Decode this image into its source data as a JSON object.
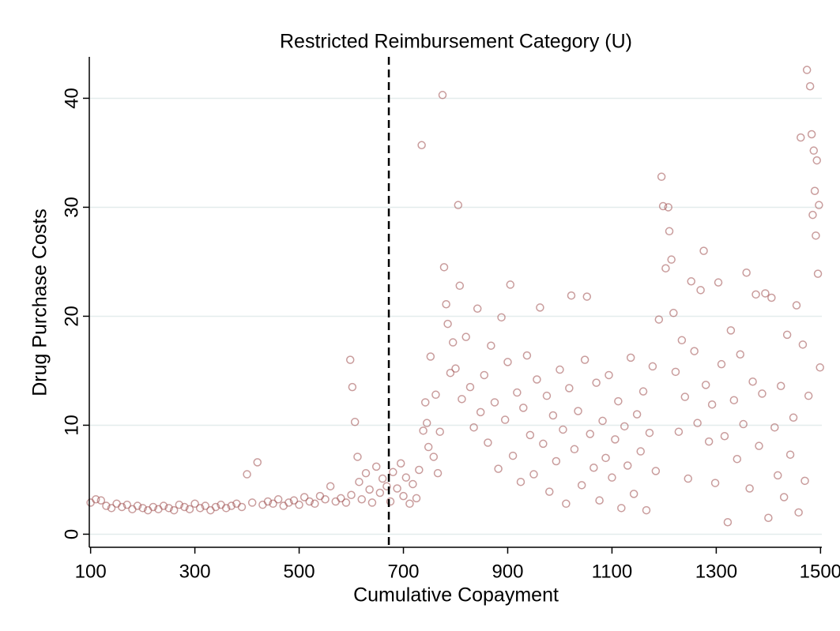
{
  "chart_data": {
    "type": "scatter",
    "title": "Restricted Reimbursement Category (U)",
    "x_label": "Cumulative Copayment",
    "y_label": "Drug Purchase Costs",
    "color": "#9c4a4a",
    "grid": true,
    "cutoff": 672,
    "xlim": [
      97.5,
      1502.5
    ],
    "ylim": [
      -1.2,
      43.8
    ],
    "xticks": [
      100,
      300,
      500,
      700,
      900,
      1100,
      1300,
      1500
    ],
    "yticks": [
      0,
      10,
      20,
      30,
      40
    ],
    "x": [
      100,
      110,
      120,
      130,
      140,
      150,
      160,
      170,
      180,
      190,
      200,
      210,
      220,
      230,
      240,
      250,
      260,
      270,
      280,
      290,
      300,
      310,
      320,
      330,
      340,
      350,
      360,
      370,
      380,
      390,
      400,
      410,
      420,
      430,
      440,
      450,
      460,
      470,
      480,
      490,
      500,
      510,
      520,
      530,
      540,
      550,
      560,
      570,
      580,
      590,
      600,
      598,
      602,
      607,
      612,
      615,
      620,
      628,
      635,
      640,
      648,
      655,
      660,
      668,
      675,
      680,
      688,
      695,
      700,
      705,
      712,
      718,
      725,
      730,
      735,
      738,
      742,
      745,
      748,
      752,
      758,
      762,
      766,
      770,
      775,
      778,
      782,
      785,
      790,
      795,
      800,
      805,
      808,
      812,
      820,
      828,
      835,
      842,
      848,
      855,
      862,
      868,
      875,
      882,
      888,
      895,
      900,
      905,
      910,
      918,
      925,
      930,
      937,
      943,
      950,
      956,
      962,
      968,
      975,
      980,
      987,
      993,
      1000,
      1006,
      1012,
      1018,
      1022,
      1028,
      1035,
      1042,
      1048,
      1052,
      1058,
      1065,
      1070,
      1076,
      1082,
      1088,
      1094,
      1100,
      1106,
      1112,
      1118,
      1124,
      1130,
      1136,
      1142,
      1148,
      1155,
      1160,
      1166,
      1172,
      1178,
      1184,
      1190,
      1195,
      1198,
      1203,
      1208,
      1210,
      1214,
      1218,
      1222,
      1228,
      1234,
      1240,
      1246,
      1252,
      1258,
      1264,
      1270,
      1276,
      1280,
      1286,
      1292,
      1298,
      1304,
      1310,
      1316,
      1322,
      1328,
      1334,
      1340,
      1346,
      1352,
      1358,
      1364,
      1370,
      1376,
      1382,
      1388,
      1394,
      1400,
      1406,
      1412,
      1418,
      1424,
      1430,
      1436,
      1442,
      1448,
      1454,
      1458,
      1462,
      1466,
      1470,
      1474,
      1477,
      1480,
      1483,
      1485,
      1487,
      1489,
      1491,
      1493,
      1495,
      1497,
      1499
    ],
    "values": [
      2.9,
      3.2,
      3.1,
      2.6,
      2.4,
      2.8,
      2.5,
      2.7,
      2.3,
      2.6,
      2.4,
      2.2,
      2.5,
      2.3,
      2.6,
      2.4,
      2.2,
      2.7,
      2.5,
      2.3,
      2.8,
      2.4,
      2.6,
      2.2,
      2.5,
      2.7,
      2.4,
      2.6,
      2.8,
      2.5,
      5.5,
      2.9,
      6.6,
      2.7,
      3.0,
      2.8,
      3.2,
      2.6,
      2.9,
      3.1,
      2.7,
      3.4,
      3.0,
      2.8,
      3.5,
      3.2,
      4.4,
      3.0,
      3.3,
      2.9,
      3.6,
      16.0,
      13.5,
      10.3,
      7.1,
      4.8,
      3.2,
      5.6,
      4.1,
      2.9,
      6.2,
      3.8,
      5.1,
      4.4,
      3.0,
      5.7,
      4.2,
      6.5,
      3.5,
      5.2,
      2.8,
      4.6,
      3.3,
      5.9,
      35.7,
      9.5,
      12.1,
      10.2,
      8.0,
      16.3,
      7.1,
      12.8,
      5.6,
      9.4,
      40.3,
      24.5,
      21.1,
      19.3,
      14.8,
      17.6,
      15.2,
      30.2,
      22.8,
      12.4,
      18.1,
      13.5,
      9.8,
      20.7,
      11.2,
      14.6,
      8.4,
      17.3,
      12.1,
      6.0,
      19.9,
      10.5,
      15.8,
      22.9,
      7.2,
      13.0,
      4.8,
      11.6,
      16.4,
      9.1,
      5.5,
      14.2,
      20.8,
      8.3,
      12.7,
      3.9,
      10.9,
      6.7,
      15.1,
      9.6,
      2.8,
      13.4,
      21.9,
      7.8,
      11.3,
      4.5,
      16.0,
      21.8,
      9.2,
      6.1,
      13.9,
      3.1,
      10.4,
      7.0,
      14.6,
      5.2,
      8.7,
      12.2,
      2.4,
      9.9,
      6.3,
      16.2,
      3.7,
      11.0,
      7.6,
      13.1,
      2.2,
      9.3,
      15.4,
      5.8,
      19.7,
      32.8,
      30.1,
      24.4,
      30.0,
      27.8,
      25.2,
      20.3,
      14.9,
      9.4,
      17.8,
      12.6,
      5.1,
      23.2,
      16.8,
      10.2,
      22.4,
      26.0,
      13.7,
      8.5,
      11.9,
      4.7,
      23.1,
      15.6,
      9.0,
      1.1,
      18.7,
      12.3,
      6.9,
      16.5,
      10.1,
      24.0,
      4.2,
      14.0,
      22.0,
      8.1,
      12.9,
      22.1,
      1.5,
      21.7,
      9.8,
      5.4,
      13.6,
      3.4,
      18.3,
      7.3,
      10.7,
      21.0,
      2.0,
      36.4,
      17.4,
      4.9,
      42.6,
      12.7,
      41.1,
      36.7,
      29.3,
      35.2,
      31.5,
      27.4,
      34.3,
      23.9,
      30.2,
      15.3
    ]
  }
}
